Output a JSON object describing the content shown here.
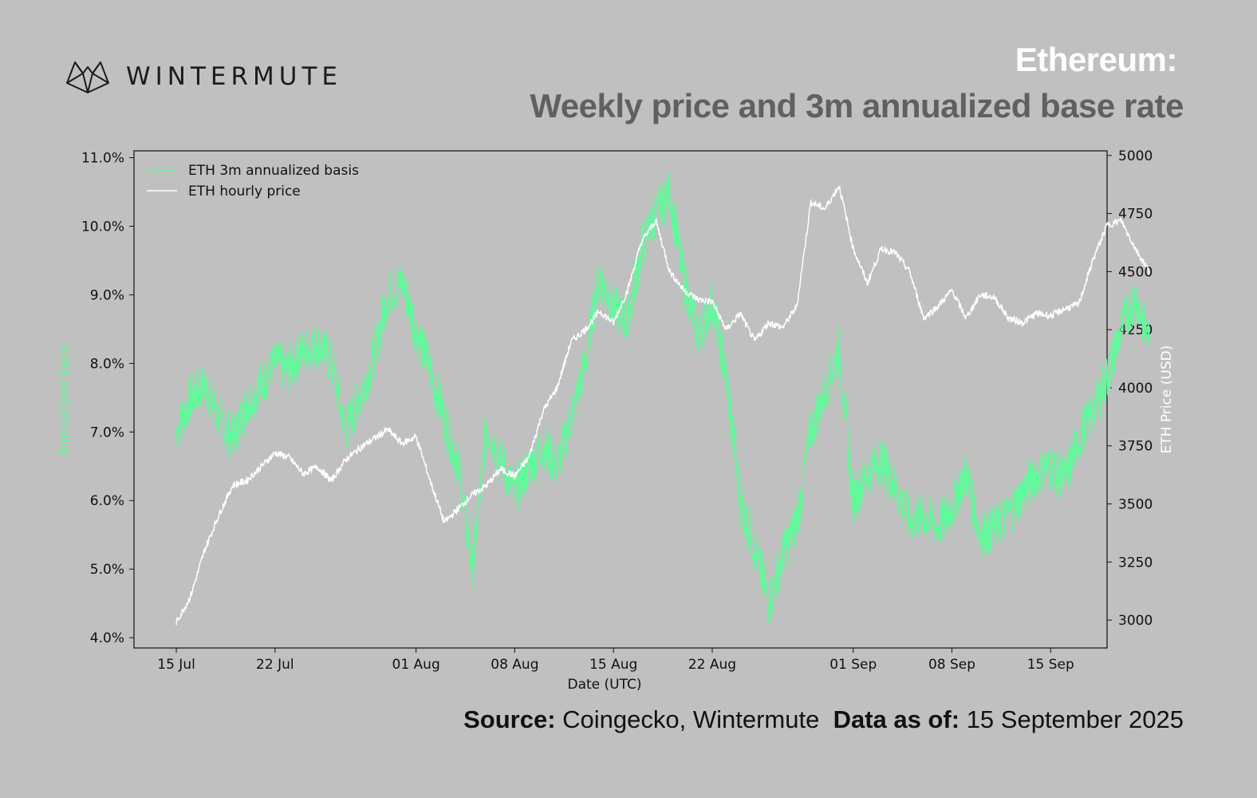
{
  "header": {
    "logo_text": "WINTERMUTE",
    "title_line1": "Ethereum:",
    "title_line2": "Weekly price and 3m annualized base rate"
  },
  "footer": {
    "source_label": "Source:",
    "source_value": "Coingecko, Wintermute",
    "asof_label": "Data as of:",
    "asof_value": "15 September 2025"
  },
  "colors": {
    "background": "#bfc0bf",
    "basis": "#5dfc9a",
    "price": "#ffffff",
    "title_secondary": "#5f615f"
  },
  "chart_data": {
    "type": "line",
    "xlabel": "Date (UTC)",
    "ylabel_left": "Annualized basis",
    "ylabel_right": "ETH Price (USD)",
    "x_ticks": [
      "15 Jul",
      "22 Jul",
      "01 Aug",
      "08 Aug",
      "15 Aug",
      "22 Aug",
      "01 Sep",
      "08 Sep",
      "15 Sep"
    ],
    "x_tick_dates": [
      "2025-07-15",
      "2025-07-22",
      "2025-08-01",
      "2025-08-08",
      "2025-08-15",
      "2025-08-22",
      "2025-09-01",
      "2025-09-08",
      "2025-09-15"
    ],
    "xlim": [
      "2025-07-12",
      "2025-09-19"
    ],
    "left_axis": {
      "ylim": [
        3.85,
        11.1
      ],
      "ticks": [
        "4.0%",
        "5.0%",
        "6.0%",
        "7.0%",
        "8.0%",
        "9.0%",
        "10.0%",
        "11.0%"
      ],
      "tick_values": [
        4,
        5,
        6,
        7,
        8,
        9,
        10,
        11
      ]
    },
    "right_axis": {
      "ylim": [
        2880,
        5020
      ],
      "ticks": [
        "3000",
        "3250",
        "3500",
        "3750",
        "4000",
        "4250",
        "4500",
        "4750",
        "5000"
      ],
      "tick_values": [
        3000,
        3250,
        3500,
        3750,
        4000,
        4250,
        4500,
        4750,
        5000
      ]
    },
    "legend_position": "top-left",
    "grid": false,
    "series": [
      {
        "name": "ETH 3m annualized basis",
        "axis": "left",
        "unit": "%",
        "points": [
          [
            "2025-07-15",
            7.0
          ],
          [
            "2025-07-16",
            7.5
          ],
          [
            "2025-07-17",
            7.7
          ],
          [
            "2025-07-18",
            7.2
          ],
          [
            "2025-07-19",
            6.9
          ],
          [
            "2025-07-20",
            7.4
          ],
          [
            "2025-07-21",
            7.7
          ],
          [
            "2025-07-22",
            8.0
          ],
          [
            "2025-07-23",
            7.9
          ],
          [
            "2025-07-24",
            8.2
          ],
          [
            "2025-07-25",
            8.3
          ],
          [
            "2025-07-26",
            8.0
          ],
          [
            "2025-07-27",
            7.0
          ],
          [
            "2025-07-28",
            7.5
          ],
          [
            "2025-07-29",
            8.1
          ],
          [
            "2025-07-30",
            9.0
          ],
          [
            "2025-07-31",
            9.2
          ],
          [
            "2025-08-01",
            8.5
          ],
          [
            "2025-08-02",
            7.9
          ],
          [
            "2025-08-03",
            7.2
          ],
          [
            "2025-08-04",
            6.5
          ],
          [
            "2025-08-05",
            5.0
          ],
          [
            "2025-08-06",
            7.1
          ],
          [
            "2025-08-07",
            6.6
          ],
          [
            "2025-08-08",
            6.1
          ],
          [
            "2025-08-09",
            6.5
          ],
          [
            "2025-08-10",
            6.8
          ],
          [
            "2025-08-11",
            6.5
          ],
          [
            "2025-08-12",
            7.2
          ],
          [
            "2025-08-13",
            8.0
          ],
          [
            "2025-08-14",
            9.3
          ],
          [
            "2025-08-15",
            8.8
          ],
          [
            "2025-08-16",
            8.6
          ],
          [
            "2025-08-17",
            9.7
          ],
          [
            "2025-08-18",
            10.2
          ],
          [
            "2025-08-19",
            10.5
          ],
          [
            "2025-08-20",
            9.2
          ],
          [
            "2025-08-21",
            8.4
          ],
          [
            "2025-08-22",
            8.9
          ],
          [
            "2025-08-23",
            7.8
          ],
          [
            "2025-08-24",
            6.0
          ],
          [
            "2025-08-25",
            5.3
          ],
          [
            "2025-08-26",
            4.5
          ],
          [
            "2025-08-27",
            5.2
          ],
          [
            "2025-08-28",
            5.7
          ],
          [
            "2025-08-29",
            7.0
          ],
          [
            "2025-08-30",
            7.6
          ],
          [
            "2025-08-31",
            8.2
          ],
          [
            "2025-09-01",
            6.0
          ],
          [
            "2025-09-02",
            6.4
          ],
          [
            "2025-09-03",
            6.6
          ],
          [
            "2025-09-04",
            6.2
          ],
          [
            "2025-09-05",
            5.7
          ],
          [
            "2025-09-06",
            5.8
          ],
          [
            "2025-09-07",
            5.6
          ],
          [
            "2025-09-08",
            5.9
          ],
          [
            "2025-09-09",
            6.4
          ],
          [
            "2025-09-10",
            5.5
          ],
          [
            "2025-09-11",
            5.6
          ],
          [
            "2025-09-12",
            5.8
          ],
          [
            "2025-09-13",
            6.1
          ],
          [
            "2025-09-14",
            6.4
          ],
          [
            "2025-09-15",
            6.5
          ],
          [
            "2025-09-16",
            6.3
          ],
          [
            "2025-09-17",
            6.9
          ],
          [
            "2025-09-18",
            7.3
          ],
          [
            "2025-09-19",
            7.8
          ],
          [
            "2025-09-20",
            8.5
          ],
          [
            "2025-09-21",
            9.0
          ],
          [
            "2025-09-22",
            8.3
          ]
        ]
      },
      {
        "name": "ETH hourly price",
        "axis": "right",
        "unit": "USD",
        "points": [
          [
            "2025-07-15",
            2990
          ],
          [
            "2025-07-16",
            3100
          ],
          [
            "2025-07-17",
            3300
          ],
          [
            "2025-07-18",
            3450
          ],
          [
            "2025-07-19",
            3580
          ],
          [
            "2025-07-20",
            3600
          ],
          [
            "2025-07-21",
            3660
          ],
          [
            "2025-07-22",
            3720
          ],
          [
            "2025-07-23",
            3700
          ],
          [
            "2025-07-24",
            3630
          ],
          [
            "2025-07-25",
            3660
          ],
          [
            "2025-07-26",
            3600
          ],
          [
            "2025-07-27",
            3690
          ],
          [
            "2025-07-28",
            3740
          ],
          [
            "2025-07-29",
            3780
          ],
          [
            "2025-07-30",
            3820
          ],
          [
            "2025-07-31",
            3760
          ],
          [
            "2025-08-01",
            3790
          ],
          [
            "2025-08-02",
            3600
          ],
          [
            "2025-08-03",
            3420
          ],
          [
            "2025-08-04",
            3480
          ],
          [
            "2025-08-05",
            3540
          ],
          [
            "2025-08-06",
            3580
          ],
          [
            "2025-08-07",
            3650
          ],
          [
            "2025-08-08",
            3620
          ],
          [
            "2025-08-09",
            3700
          ],
          [
            "2025-08-10",
            3900
          ],
          [
            "2025-08-11",
            4000
          ],
          [
            "2025-08-12",
            4200
          ],
          [
            "2025-08-13",
            4250
          ],
          [
            "2025-08-14",
            4330
          ],
          [
            "2025-08-15",
            4280
          ],
          [
            "2025-08-16",
            4420
          ],
          [
            "2025-08-17",
            4630
          ],
          [
            "2025-08-18",
            4720
          ],
          [
            "2025-08-19",
            4500
          ],
          [
            "2025-08-20",
            4420
          ],
          [
            "2025-08-21",
            4380
          ],
          [
            "2025-08-22",
            4370
          ],
          [
            "2025-08-23",
            4250
          ],
          [
            "2025-08-24",
            4320
          ],
          [
            "2025-08-25",
            4200
          ],
          [
            "2025-08-26",
            4280
          ],
          [
            "2025-08-27",
            4260
          ],
          [
            "2025-08-28",
            4350
          ],
          [
            "2025-08-29",
            4800
          ],
          [
            "2025-08-30",
            4770
          ],
          [
            "2025-08-31",
            4870
          ],
          [
            "2025-09-01",
            4600
          ],
          [
            "2025-09-02",
            4450
          ],
          [
            "2025-09-03",
            4600
          ],
          [
            "2025-09-04",
            4580
          ],
          [
            "2025-09-05",
            4500
          ],
          [
            "2025-09-06",
            4300
          ],
          [
            "2025-09-07",
            4350
          ],
          [
            "2025-09-08",
            4420
          ],
          [
            "2025-09-09",
            4300
          ],
          [
            "2025-09-10",
            4400
          ],
          [
            "2025-09-11",
            4390
          ],
          [
            "2025-09-12",
            4300
          ],
          [
            "2025-09-13",
            4280
          ],
          [
            "2025-09-14",
            4320
          ],
          [
            "2025-09-15",
            4310
          ],
          [
            "2025-09-16",
            4340
          ],
          [
            "2025-09-17",
            4360
          ],
          [
            "2025-09-18",
            4550
          ],
          [
            "2025-09-19",
            4700
          ],
          [
            "2025-09-20",
            4720
          ],
          [
            "2025-09-21",
            4600
          ],
          [
            "2025-09-22",
            4500
          ]
        ]
      }
    ]
  }
}
